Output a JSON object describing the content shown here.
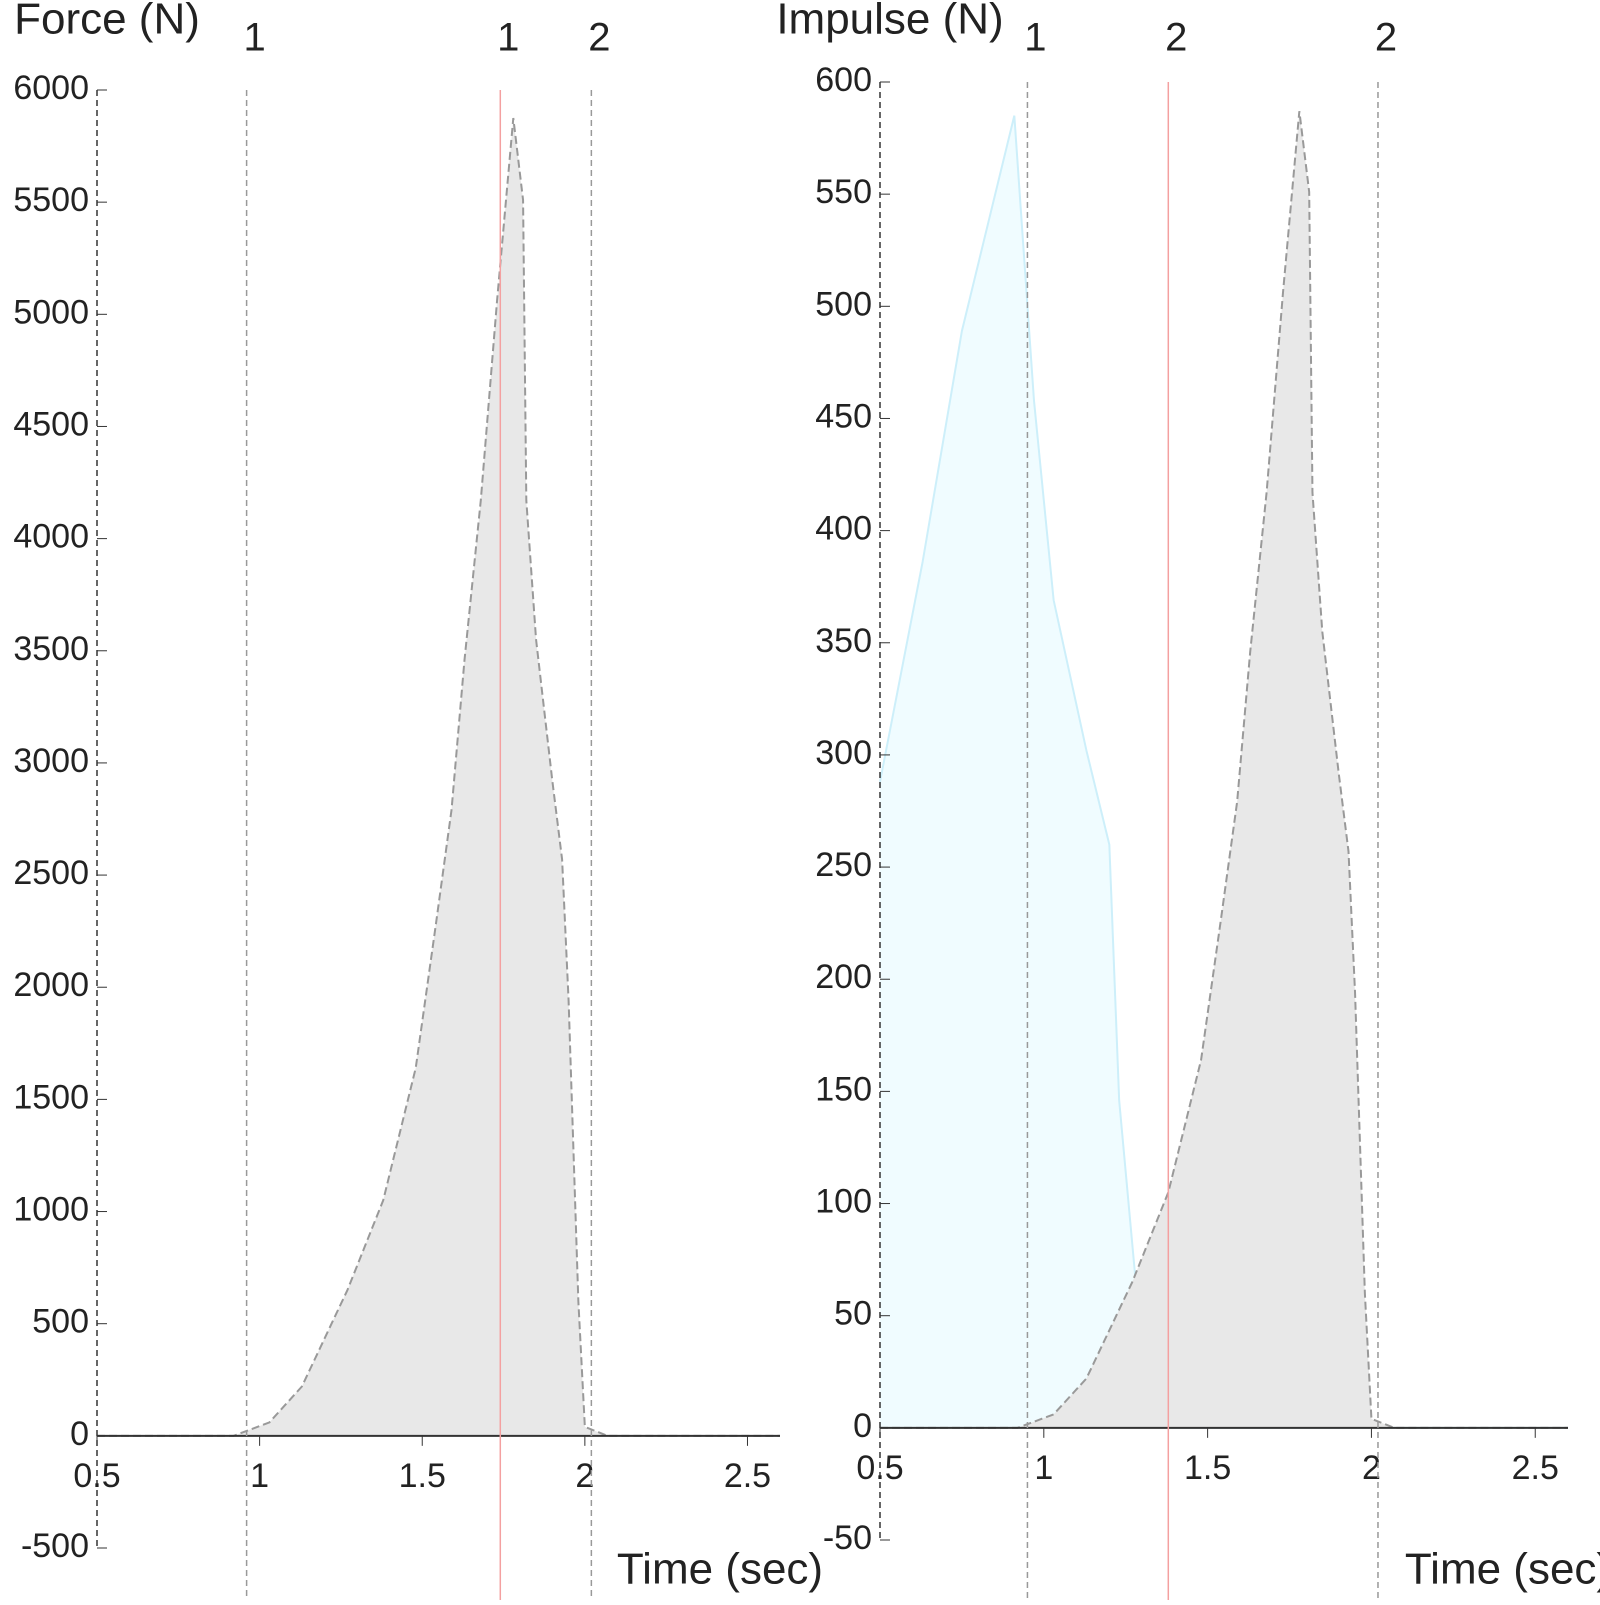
{
  "chart_data": [
    {
      "type": "area",
      "title": "Force (N)",
      "x_label": "Time (sec)",
      "xlim": [
        0.5,
        2.6
      ],
      "ylim": [
        -500,
        6000
      ],
      "xticks": [
        0.5,
        1,
        1.5,
        2,
        2.5
      ],
      "yticks": [
        -500,
        0,
        500,
        1000,
        1500,
        2000,
        2500,
        3000,
        3500,
        4000,
        4500,
        5000,
        5500,
        6000
      ],
      "markers": [
        {
          "value": 0.96,
          "label": "1",
          "color": "#999999"
        },
        {
          "value": 1.74,
          "label": "1",
          "color": "#f4a0a0"
        },
        {
          "value": 2.02,
          "label": "2",
          "color": "#999999"
        }
      ],
      "series": [
        {
          "color": "#e8e8e8",
          "x": [
            0.5,
            0.92,
            1.03,
            1.13,
            1.27,
            1.38,
            1.48,
            1.54,
            1.59,
            1.63,
            1.68,
            1.73,
            1.78,
            1.81,
            1.82,
            1.85,
            1.9,
            1.93,
            1.95,
            1.98,
            2.0,
            2.07,
            2.6
          ],
          "values": [
            0,
            0,
            60,
            220,
            650,
            1050,
            1640,
            2260,
            2790,
            3460,
            4170,
            5060,
            5875,
            5510,
            4170,
            3550,
            2920,
            2570,
            1940,
            600,
            40,
            0,
            0
          ]
        }
      ]
    },
    {
      "type": "area",
      "title": "Impulse (N)",
      "x_label": "Time (sec)",
      "xlim": [
        0.5,
        2.6
      ],
      "ylim": [
        -50,
        600
      ],
      "xticks": [
        0.5,
        1,
        1.5,
        2,
        2.5
      ],
      "yticks": [
        -50,
        0,
        50,
        100,
        150,
        200,
        250,
        300,
        350,
        400,
        450,
        500,
        550,
        600
      ],
      "markers": [
        {
          "value": 0.95,
          "label": "1",
          "color": "#999999"
        },
        {
          "value": 1.38,
          "label": "2",
          "color": "#f4a0a0"
        },
        {
          "value": 2.02,
          "label": "2",
          "color": "#999999"
        }
      ],
      "series": [
        {
          "color": "#f0fcff",
          "x": [
            0.5,
            0.63,
            0.75,
            0.91,
            0.97,
            1.03,
            1.13,
            1.2,
            1.23,
            1.28,
            1.33,
            1.38,
            2.6
          ],
          "values": [
            288,
            386,
            489,
            585,
            458,
            369,
            302,
            260,
            146,
            66,
            12,
            0,
            0
          ]
        },
        {
          "color": "#e8e8e8",
          "x": [
            0.5,
            0.92,
            1.03,
            1.13,
            1.27,
            1.38,
            1.48,
            1.54,
            1.59,
            1.63,
            1.68,
            1.73,
            1.78,
            1.81,
            1.82,
            1.85,
            1.9,
            1.93,
            1.95,
            1.98,
            2.0,
            2.07,
            2.6
          ],
          "values": [
            0,
            0,
            6,
            22,
            65,
            105,
            164,
            226,
            279,
            346,
            417,
            506,
            587,
            551,
            417,
            355,
            292,
            257,
            194,
            60,
            4,
            0,
            0
          ]
        }
      ]
    }
  ]
}
